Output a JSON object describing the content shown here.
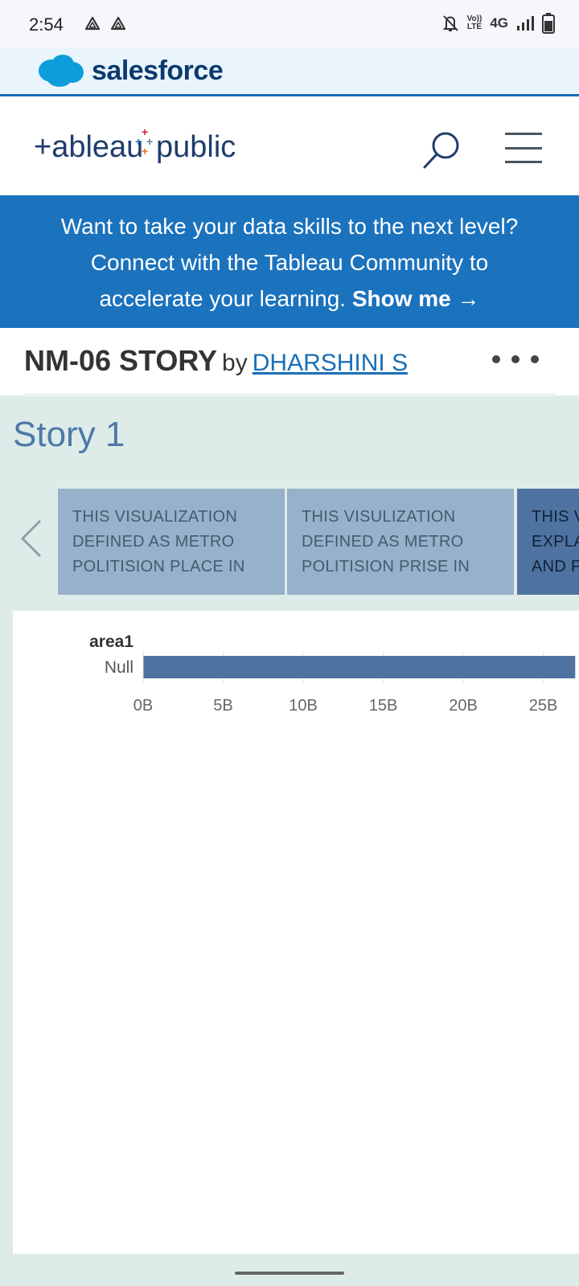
{
  "status_bar": {
    "time": "2:54",
    "left_icons": [
      "drive-icon",
      "drive-icon"
    ],
    "right_icons": [
      "mute-bell-icon",
      "volte-icon",
      "4g-icon",
      "signal-icon",
      "battery-icon"
    ],
    "volte_top": "Vo))",
    "volte_bottom": "LTE",
    "network": "4G"
  },
  "salesforce_bar": {
    "brand": "salesforce",
    "logo_icon": "salesforce-cloud-icon",
    "color": "#0b3a6e"
  },
  "header": {
    "logo": "+ableau+public",
    "logo_icon": "tableau-public-logo",
    "search_icon": "search-icon",
    "menu_icon": "hamburger-menu-icon"
  },
  "promo": {
    "line1": "Want to take your data skills to the next level?",
    "line2": "Connect with the Tableau Community to",
    "line3": "accelerate your learning.",
    "link": "Show me →",
    "background": "#1b72bd"
  },
  "viz_title": {
    "title": "NM-06 STORY",
    "by": "by",
    "author": "DHARSHINI S",
    "more_icon": "more-dots-icon"
  },
  "story": {
    "title": "Story 1",
    "prev_icon": "chevron-left-icon",
    "points": [
      {
        "lines": [
          "THIS VISUALIZATION",
          "DEFINED AS METRO",
          "POLITISION PLACE IN"
        ],
        "active": false
      },
      {
        "lines": [
          "THIS VISULIZATION",
          "DEFINED AS METRO",
          "POLITISION PRISE IN"
        ],
        "active": false
      },
      {
        "lines": [
          "THIS V",
          "EXPLA",
          "AND P"
        ],
        "active": true
      }
    ],
    "background": "#deece9"
  },
  "chart_data": {
    "type": "bar",
    "orientation": "horizontal",
    "title": "",
    "xlabel": "",
    "ylabel": "area1",
    "categories": [
      "Null"
    ],
    "values": [
      27000000000
    ],
    "x_ticks": [
      "0B",
      "5B",
      "10B",
      "15B",
      "20B",
      "25B"
    ],
    "x_tick_values": [
      0,
      5000000000,
      10000000000,
      15000000000,
      20000000000,
      25000000000
    ],
    "xlim": [
      0,
      27000000000
    ],
    "grid": true,
    "bar_color": "#4e73a0"
  }
}
